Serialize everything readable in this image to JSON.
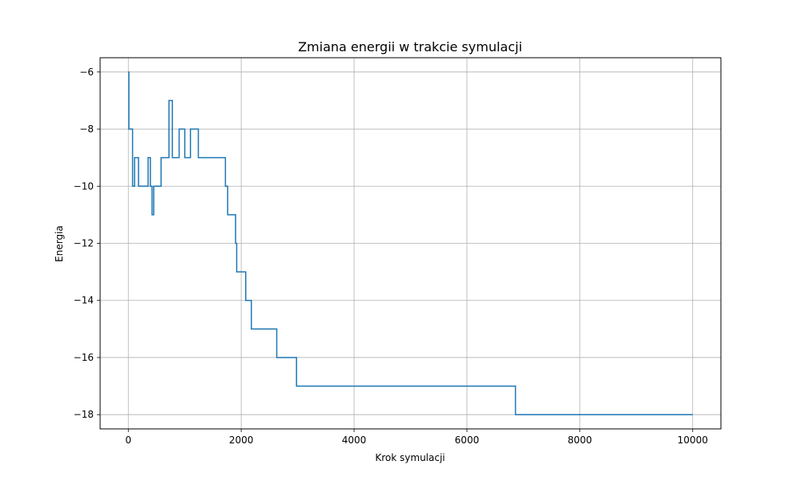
{
  "chart_data": {
    "type": "line",
    "title": "Zmiana energii w trakcie symulacji",
    "xlabel": "Krok symulacji",
    "ylabel": "Energia",
    "xlim": [
      -500,
      10500
    ],
    "ylim": [
      -18.5,
      -5.5
    ],
    "xticks": [
      0,
      2000,
      4000,
      6000,
      8000,
      10000
    ],
    "yticks": [
      -6,
      -8,
      -10,
      -12,
      -14,
      -16,
      -18
    ],
    "xtick_labels": [
      "0",
      "2000",
      "4000",
      "6000",
      "8000",
      "10000"
    ],
    "ytick_labels": [
      "−6",
      "−8",
      "−10",
      "−12",
      "−14",
      "−16",
      "−18"
    ],
    "grid": true,
    "line_style": "steps",
    "colors": {
      "series": "#1f77b4",
      "grid": "#b0b0b0"
    },
    "series": [
      {
        "x": [
          0,
          10,
          75,
          110,
          180,
          350,
          390,
          420,
          450,
          580,
          720,
          780,
          900,
          1000,
          1100,
          1240,
          1720,
          1740,
          1760,
          1900,
          1920,
          1950,
          2080,
          2180,
          2630,
          2980,
          6860,
          10000
        ],
        "y": [
          -6,
          -8,
          -10,
          -9,
          -10,
          -9,
          -10,
          -11,
          -10,
          -9,
          -7,
          -9,
          -8,
          -9,
          -8,
          -9,
          -10,
          -10,
          -11,
          -12,
          -13,
          -13,
          -14,
          -15,
          -16,
          -17,
          -18,
          -18
        ]
      }
    ]
  }
}
